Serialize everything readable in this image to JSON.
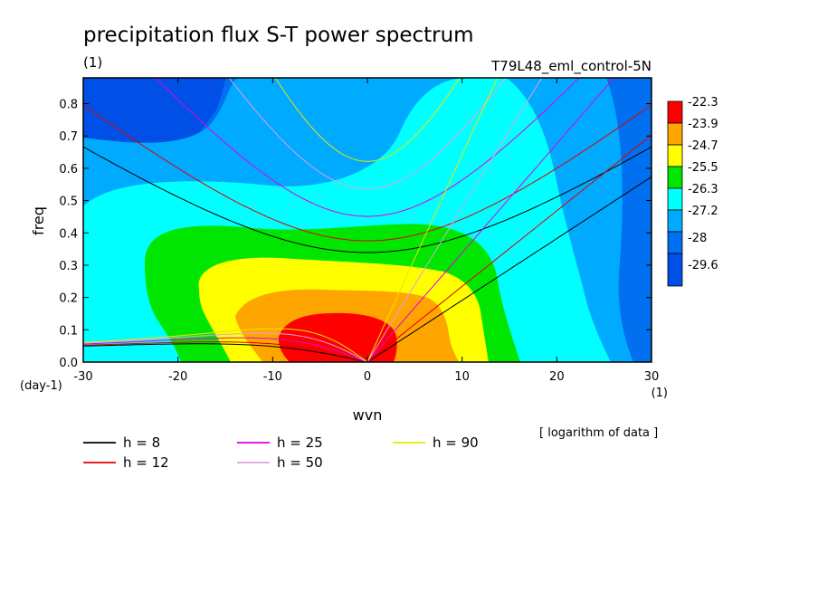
{
  "chart_data": {
    "type": "heatmap",
    "title": "precipitation flux S-T power spectrum",
    "title_units": "(1)",
    "experiment": "T79L48_eml_control-5N",
    "xlabel": "wvn",
    "x_units": "(1)",
    "ylabel": "freq",
    "y_units": "(day-1)",
    "xlim": [
      -30,
      30
    ],
    "ylim": [
      0,
      0.88
    ],
    "x_ticks": [
      -30,
      -20,
      -10,
      0,
      10,
      20,
      30
    ],
    "x_tick_labels": [
      "-30",
      "-20",
      "-10",
      "0",
      "10",
      "20",
      "30"
    ],
    "y_ticks": [
      0,
      0.1,
      0.2,
      0.3,
      0.4,
      0.5,
      0.6,
      0.7,
      0.8
    ],
    "y_tick_labels": [
      "0.0",
      "0.1",
      "0.2",
      "0.3",
      "0.4",
      "0.5",
      "0.6",
      "0.7",
      "0.8"
    ],
    "note": "[ logarithm of data ]",
    "colorbar": {
      "labels": [
        "-22.3",
        "-23.9",
        "-24.7",
        "-25.5",
        "-26.3",
        "-27.2",
        "-28",
        "-29.6"
      ],
      "colors": [
        "#ff0000",
        "#ffa500",
        "#ffff00",
        "#00e600",
        "#00ffff",
        "#00aaff",
        "#0070f0",
        "#0050e8"
      ]
    },
    "dispersion_curves": [
      {
        "label": "h =  8",
        "h": 8,
        "color": "#000000"
      },
      {
        "label": "h = 12",
        "h": 12,
        "color": "#e00000"
      },
      {
        "label": "h = 25",
        "h": 25,
        "color": "#e000e0"
      },
      {
        "label": "h = 50",
        "h": 50,
        "color": "#e0a0e0"
      },
      {
        "label": "h = 90",
        "h": 90,
        "color": "#e8e800"
      }
    ]
  }
}
